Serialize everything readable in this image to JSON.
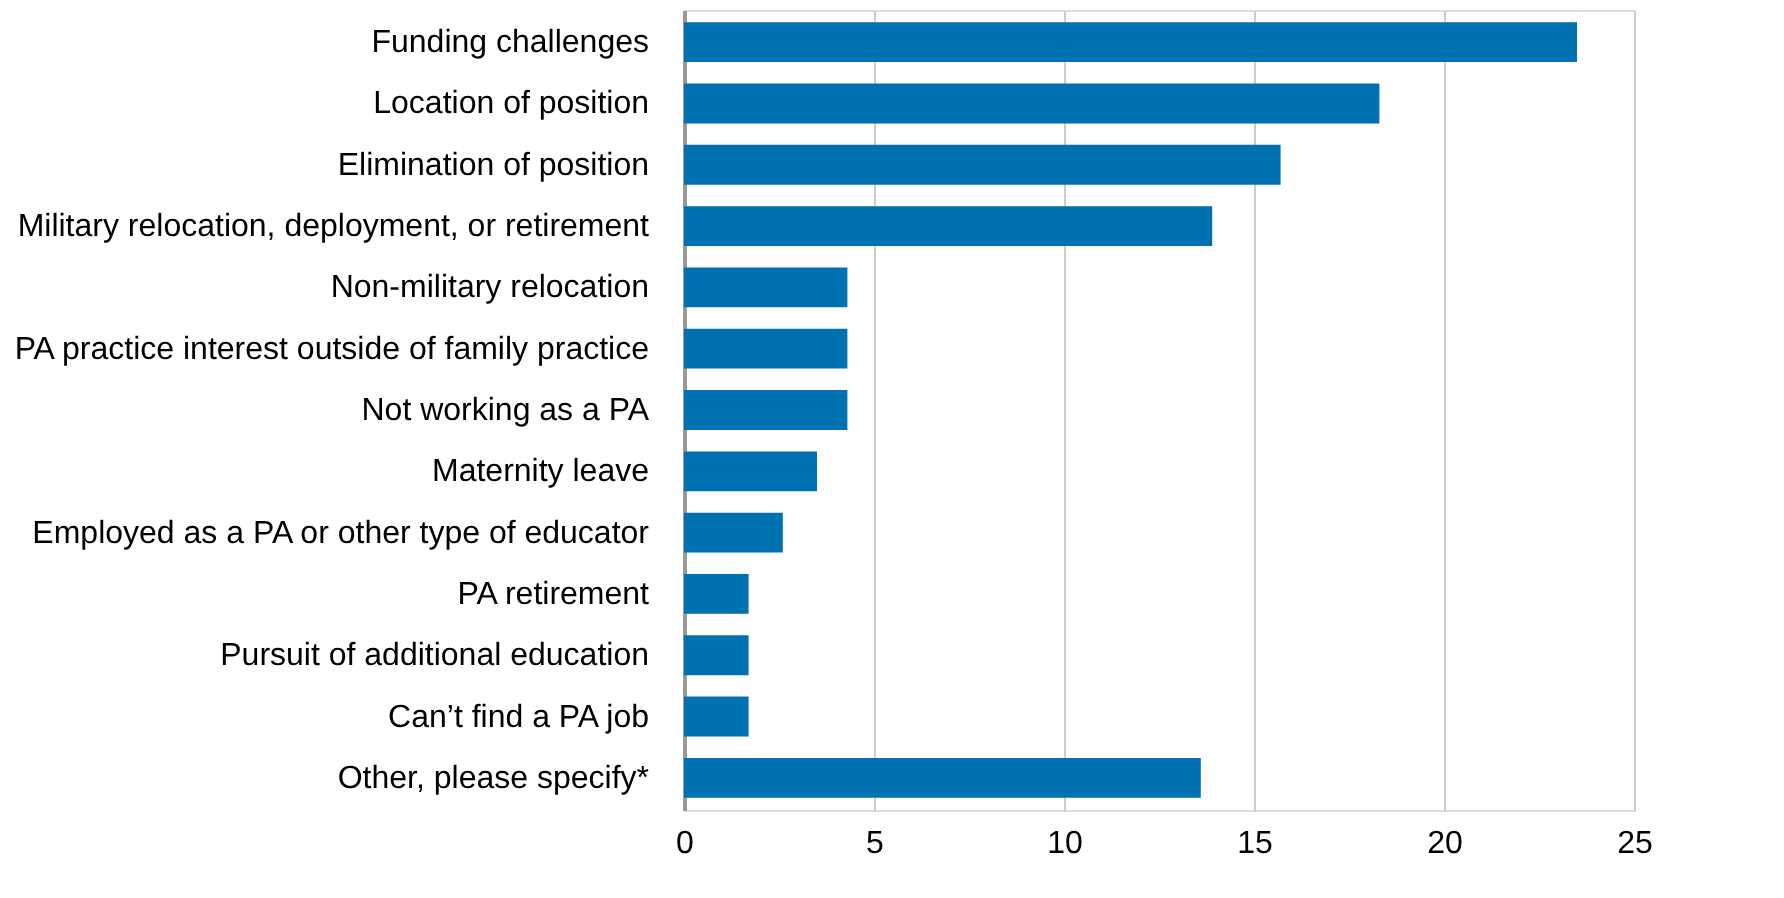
{
  "chart_data": {
    "type": "bar",
    "orientation": "horizontal",
    "categories": [
      "Funding challenges",
      "Location of position",
      "Elimination of position",
      "Military relocation, deployment, or retirement",
      "Non-military relocation",
      "PA practice interest outside of family practice",
      "Not working as a PA",
      "Maternity leave",
      "Employed as a PA or other type of educator",
      "PA retirement",
      "Pursuit of additional education",
      "Can’t find a PA job",
      "Other, please specify*"
    ],
    "values": [
      23.5,
      18.3,
      15.7,
      13.9,
      4.3,
      4.3,
      4.3,
      3.5,
      2.6,
      1.7,
      1.7,
      1.7,
      13.6
    ],
    "color": "#0072b2",
    "xlim": [
      0,
      25
    ],
    "xticks": [
      0,
      5,
      10,
      15,
      20,
      25
    ],
    "grid": "x"
  }
}
